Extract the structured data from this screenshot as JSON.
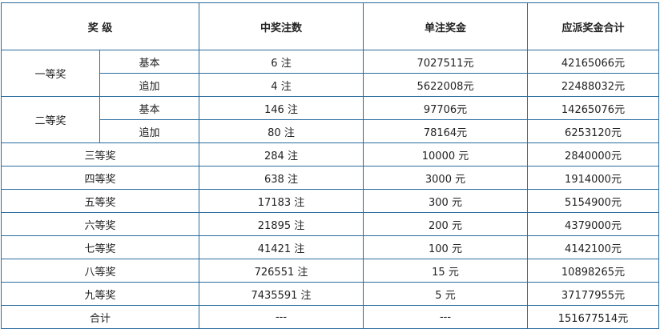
{
  "header": {
    "level": "奖 级",
    "count": "中奖注数",
    "unit_prize": "单注奖金",
    "total": "应派奖金合计"
  },
  "grouped": [
    {
      "level": "一等奖",
      "rows": [
        {
          "sub": "基本",
          "count": "6 注",
          "unit_prize": "7027511元",
          "total": "42165066元"
        },
        {
          "sub": "追加",
          "count": "4 注",
          "unit_prize": "5622008元",
          "total": "22488032元"
        }
      ]
    },
    {
      "level": "二等奖",
      "rows": [
        {
          "sub": "基本",
          "count": "146 注",
          "unit_prize": "97706元",
          "total": "14265076元"
        },
        {
          "sub": "追加",
          "count": "80 注",
          "unit_prize": "78164元",
          "total": "6253120元"
        }
      ]
    }
  ],
  "rows": [
    {
      "level": "三等奖",
      "count": "284 注",
      "unit_prize": "10000 元",
      "total": "2840000元"
    },
    {
      "level": "四等奖",
      "count": "638 注",
      "unit_prize": "3000 元",
      "total": "1914000元"
    },
    {
      "level": "五等奖",
      "count": "17183 注",
      "unit_prize": "300 元",
      "total": "5154900元"
    },
    {
      "level": "六等奖",
      "count": "21895 注",
      "unit_prize": "200 元",
      "total": "4379000元"
    },
    {
      "level": "七等奖",
      "count": "41421 注",
      "unit_prize": "100 元",
      "total": "4142100元"
    },
    {
      "level": "八等奖",
      "count": "726551 注",
      "unit_prize": "15 元",
      "total": "10898265元"
    },
    {
      "level": "九等奖",
      "count": "7435591 注",
      "unit_prize": "5 元",
      "total": "37177955元"
    },
    {
      "level": "合计",
      "count": "---",
      "unit_prize": "---",
      "total": "151677514元"
    }
  ],
  "colors": {
    "border": "#2a6c9e"
  }
}
